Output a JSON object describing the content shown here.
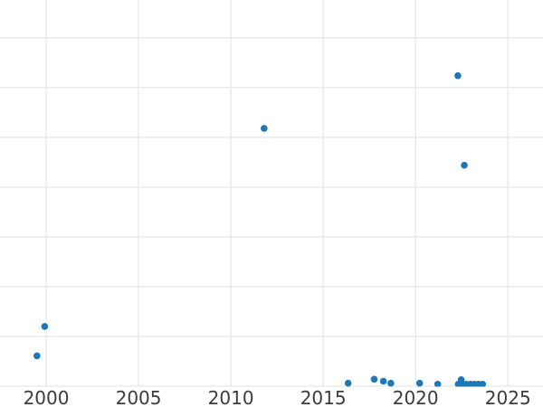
{
  "figure": {
    "background": "#ffffff"
  },
  "chart_data": {
    "type": "scatter",
    "title": "",
    "subtitle": "",
    "xlabel": "",
    "ylabel": "",
    "legend": false,
    "grid": true,
    "y_axis_labels_visible": false,
    "x_tick_labels": [
      "2000",
      "2005",
      "2010",
      "2015",
      "2020",
      "2025"
    ],
    "x_tick_values": [
      2000,
      2005,
      2010,
      2015,
      2020,
      2025
    ],
    "x_range": [
      1997.5,
      2026.9
    ],
    "y_range": [
      0,
      7.76
    ],
    "y_gridline_step": 1,
    "marker_color": "#1f77b4",
    "marker_radius_px": 3.8,
    "gridline_color": "#e7e7e7",
    "tick_label_color": "#3b3b3b",
    "points": [
      {
        "x": 1999.5,
        "y": 0.61
      },
      {
        "x": 1999.92,
        "y": 1.2
      },
      {
        "x": 2011.8,
        "y": 5.18
      },
      {
        "x": 2016.35,
        "y": 0.06
      },
      {
        "x": 2017.76,
        "y": 0.14
      },
      {
        "x": 2018.26,
        "y": 0.1
      },
      {
        "x": 2018.66,
        "y": 0.06
      },
      {
        "x": 2020.22,
        "y": 0.06
      },
      {
        "x": 2021.2,
        "y": 0.04
      },
      {
        "x": 2022.29,
        "y": 6.24
      },
      {
        "x": 2022.31,
        "y": 0.04
      },
      {
        "x": 2022.47,
        "y": 0.13
      },
      {
        "x": 2022.53,
        "y": 0.04
      },
      {
        "x": 2022.64,
        "y": 4.44
      },
      {
        "x": 2022.75,
        "y": 0.04
      },
      {
        "x": 2022.97,
        "y": 0.04
      },
      {
        "x": 2023.19,
        "y": 0.04
      },
      {
        "x": 2023.41,
        "y": 0.04
      },
      {
        "x": 2023.63,
        "y": 0.04
      }
    ]
  }
}
